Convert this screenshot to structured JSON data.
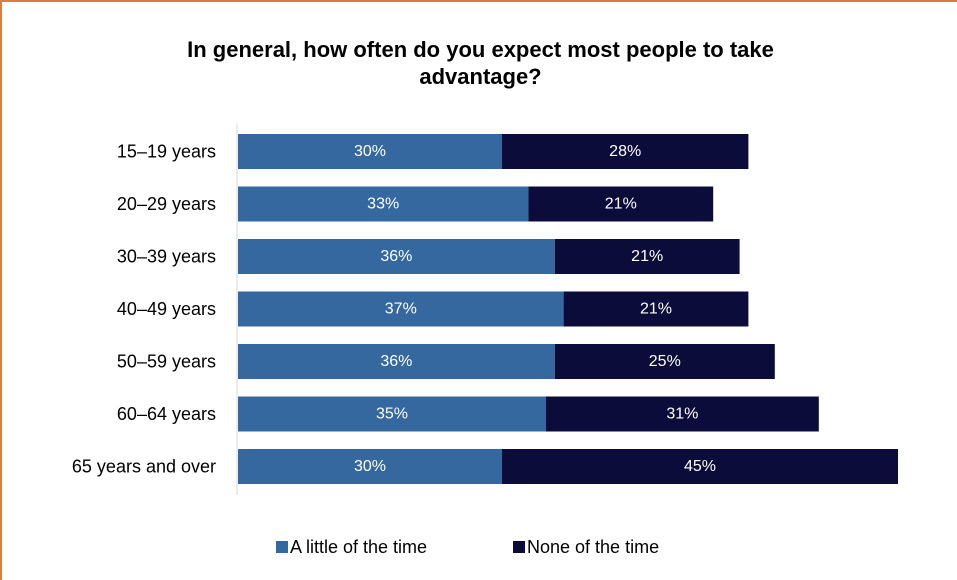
{
  "chart_data": {
    "type": "bar",
    "orientation": "horizontal",
    "stacked": true,
    "title_lines": [
      "In general, how often do you expect most people to take",
      "advantage?"
    ],
    "categories": [
      "15–19 years",
      "20–29 years",
      "30–39 years",
      "40–49 years",
      "50–59 years",
      "60–64 years",
      "65 years and over"
    ],
    "series": [
      {
        "name": "A little of the time",
        "color": "#35689f",
        "values": [
          30,
          33,
          36,
          37,
          36,
          35,
          30
        ]
      },
      {
        "name": "None of the time",
        "color": "#0c0c3a",
        "values": [
          28,
          21,
          21,
          21,
          25,
          31,
          45
        ]
      }
    ],
    "value_suffix": "%",
    "grid": false,
    "legend_position": "bottom"
  }
}
